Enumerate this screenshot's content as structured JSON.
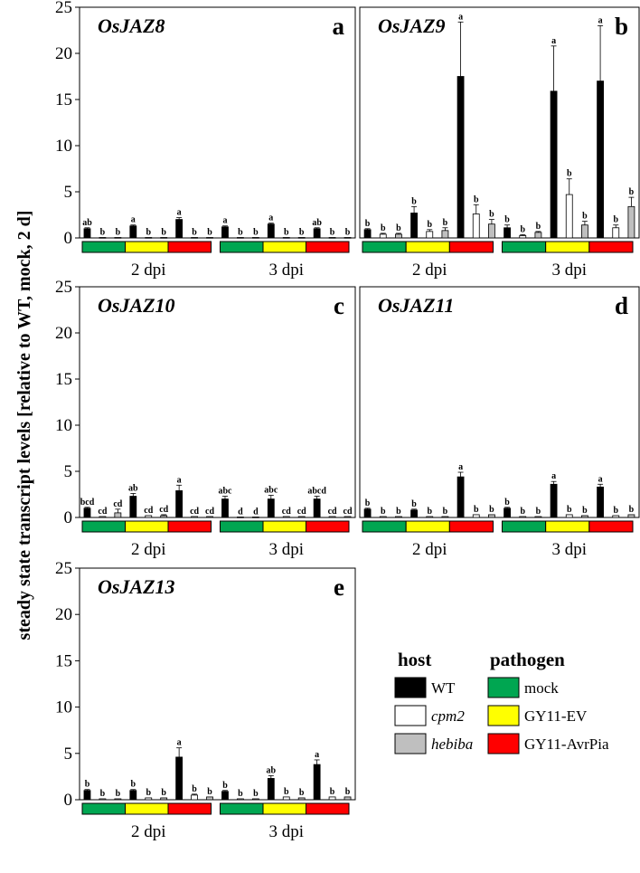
{
  "y_axis_label": "steady state transcript levels [relative to WT, mock, 2 d]",
  "colors": {
    "hosts": {
      "WT": "#000000",
      "cpm2": "#ffffff",
      "hebiba": "#bfbfbf"
    },
    "pathogens": {
      "mock": "#00a651",
      "GY11-EV": "#ffff00",
      "GY11-AvrPia": "#ff0000"
    }
  },
  "legend": {
    "host_title": "host",
    "pathogen_title": "pathogen",
    "hosts": [
      {
        "label": "WT",
        "italic": false
      },
      {
        "label": "cpm2",
        "italic": true
      },
      {
        "label": "hebiba",
        "italic": true
      }
    ],
    "pathogens": [
      "mock",
      "GY11-EV",
      "GY11-AvrPia"
    ]
  },
  "chart_data": [
    {
      "type": "bar",
      "title": "OsJAZ8",
      "letter": "a",
      "ylim": [
        0,
        25
      ],
      "yticks": [
        "0",
        "5",
        "10",
        "15",
        "20",
        "25"
      ],
      "groups": [
        "2 dpi",
        "3 dpi"
      ],
      "pathogens": [
        "mock",
        "GY11-EV",
        "GY11-AvrPia"
      ],
      "hosts": [
        "WT",
        "cpm2",
        "hebiba"
      ],
      "values": [
        [
          [
            1.0,
            0.05,
            0.05
          ],
          [
            1.3,
            0.05,
            0.05
          ],
          [
            2.0,
            0.05,
            0.05
          ]
        ],
        [
          [
            1.2,
            0.05,
            0.05
          ],
          [
            1.5,
            0.05,
            0.05
          ],
          [
            1.0,
            0.05,
            0.05
          ]
        ]
      ],
      "errors": [
        [
          [
            0.1,
            0,
            0
          ],
          [
            0.1,
            0,
            0
          ],
          [
            0.2,
            0,
            0
          ]
        ],
        [
          [
            0.1,
            0,
            0
          ],
          [
            0.1,
            0,
            0
          ],
          [
            0.1,
            0,
            0
          ]
        ]
      ],
      "sig": [
        [
          [
            "ab",
            "b",
            "b"
          ],
          [
            "a",
            "b",
            "b"
          ],
          [
            "a",
            "b",
            "b"
          ]
        ],
        [
          [
            "a",
            "b",
            "b"
          ],
          [
            "a",
            "b",
            "b"
          ],
          [
            "ab",
            "b",
            "b"
          ]
        ]
      ]
    },
    {
      "type": "bar",
      "title": "OsJAZ9",
      "letter": "b",
      "ylim": [
        0,
        25
      ],
      "yticks": [
        "0",
        "5",
        "10",
        "15",
        "20",
        "25"
      ],
      "groups": [
        "2 dpi",
        "3 dpi"
      ],
      "pathogens": [
        "mock",
        "GY11-EV",
        "GY11-AvrPia"
      ],
      "hosts": [
        "WT",
        "cpm2",
        "hebiba"
      ],
      "values": [
        [
          [
            0.9,
            0.4,
            0.4
          ],
          [
            2.7,
            0.7,
            0.8
          ],
          [
            17.5,
            2.6,
            1.5
          ]
        ],
        [
          [
            1.1,
            0.25,
            0.6
          ],
          [
            15.9,
            4.7,
            1.4
          ],
          [
            17.0,
            1.1,
            3.4
          ]
        ]
      ],
      "errors": [
        [
          [
            0.1,
            0.1,
            0.1
          ],
          [
            0.7,
            0.2,
            0.3
          ],
          [
            5.9,
            1.0,
            0.5
          ]
        ],
        [
          [
            0.3,
            0.1,
            0.1
          ],
          [
            4.9,
            1.7,
            0.4
          ],
          [
            6.0,
            0.3,
            1.0
          ]
        ]
      ],
      "sig": [
        [
          [
            "b",
            "b",
            "b"
          ],
          [
            "b",
            "b",
            "b"
          ],
          [
            "a",
            "b",
            "b"
          ]
        ],
        [
          [
            "b",
            "b",
            "b"
          ],
          [
            "a",
            "b",
            "b"
          ],
          [
            "a",
            "b",
            "b"
          ]
        ]
      ]
    },
    {
      "type": "bar",
      "title": "OsJAZ10",
      "letter": "c",
      "ylim": [
        0,
        25
      ],
      "yticks": [
        "0",
        "5",
        "10",
        "15",
        "20",
        "25"
      ],
      "groups": [
        "2 dpi",
        "3 dpi"
      ],
      "pathogens": [
        "mock",
        "GY11-EV",
        "GY11-AvrPia"
      ],
      "hosts": [
        "WT",
        "cpm2",
        "hebiba"
      ],
      "values": [
        [
          [
            1.0,
            0.1,
            0.5
          ],
          [
            2.3,
            0.2,
            0.2
          ],
          [
            2.9,
            0.1,
            0.1
          ]
        ],
        [
          [
            2.0,
            0.05,
            0.05
          ],
          [
            2.0,
            0.1,
            0.1
          ],
          [
            2.0,
            0.1,
            0.1
          ]
        ]
      ],
      "errors": [
        [
          [
            0.1,
            0,
            0.4
          ],
          [
            0.3,
            0,
            0.1
          ],
          [
            0.6,
            0,
            0
          ]
        ],
        [
          [
            0.3,
            0,
            0
          ],
          [
            0.4,
            0,
            0
          ],
          [
            0.3,
            0,
            0
          ]
        ]
      ],
      "sig": [
        [
          [
            "bcd",
            "cd",
            "cd"
          ],
          [
            "ab",
            "cd",
            "cd"
          ],
          [
            "a",
            "cd",
            "cd"
          ]
        ],
        [
          [
            "abc",
            "d",
            "d"
          ],
          [
            "abc",
            "cd",
            "cd"
          ],
          [
            "abcd",
            "cd",
            "cd"
          ]
        ]
      ]
    },
    {
      "type": "bar",
      "title": "OsJAZ11",
      "letter": "d",
      "ylim": [
        0,
        25
      ],
      "yticks": [
        "0",
        "5",
        "10",
        "15",
        "20",
        "25"
      ],
      "groups": [
        "2 dpi",
        "3 dpi"
      ],
      "pathogens": [
        "mock",
        "GY11-EV",
        "GY11-AvrPia"
      ],
      "hosts": [
        "WT",
        "cpm2",
        "hebiba"
      ],
      "values": [
        [
          [
            0.9,
            0.1,
            0.1
          ],
          [
            0.8,
            0.1,
            0.1
          ],
          [
            4.4,
            0.3,
            0.3
          ]
        ],
        [
          [
            1.0,
            0.1,
            0.1
          ],
          [
            3.6,
            0.3,
            0.2
          ],
          [
            3.3,
            0.2,
            0.3
          ]
        ]
      ],
      "errors": [
        [
          [
            0.1,
            0,
            0
          ],
          [
            0.1,
            0,
            0
          ],
          [
            0.5,
            0,
            0
          ]
        ],
        [
          [
            0.1,
            0,
            0
          ],
          [
            0.3,
            0,
            0
          ],
          [
            0.3,
            0,
            0
          ]
        ]
      ],
      "sig": [
        [
          [
            "b",
            "b",
            "b"
          ],
          [
            "b",
            "b",
            "b"
          ],
          [
            "a",
            "b",
            "b"
          ]
        ],
        [
          [
            "b",
            "b",
            "b"
          ],
          [
            "a",
            "b",
            "b"
          ],
          [
            "a",
            "b",
            "b"
          ]
        ]
      ]
    },
    {
      "type": "bar",
      "title": "OsJAZ13",
      "letter": "e",
      "ylim": [
        0,
        25
      ],
      "yticks": [
        "0",
        "5",
        "10",
        "15",
        "20",
        "25"
      ],
      "groups": [
        "2 dpi",
        "3 dpi"
      ],
      "pathogens": [
        "mock",
        "GY11-EV",
        "GY11-AvrPia"
      ],
      "hosts": [
        "WT",
        "cpm2",
        "hebiba"
      ],
      "values": [
        [
          [
            1.0,
            0.1,
            0.1
          ],
          [
            1.0,
            0.2,
            0.2
          ],
          [
            4.6,
            0.5,
            0.3
          ]
        ],
        [
          [
            0.9,
            0.1,
            0.1
          ],
          [
            2.3,
            0.3,
            0.2
          ],
          [
            3.8,
            0.3,
            0.3
          ]
        ]
      ],
      "errors": [
        [
          [
            0.1,
            0,
            0
          ],
          [
            0.1,
            0,
            0
          ],
          [
            1.0,
            0.1,
            0
          ]
        ],
        [
          [
            0.1,
            0,
            0
          ],
          [
            0.3,
            0,
            0
          ],
          [
            0.5,
            0,
            0
          ]
        ]
      ],
      "sig": [
        [
          [
            "b",
            "b",
            "b"
          ],
          [
            "b",
            "b",
            "b"
          ],
          [
            "a",
            "b",
            "b"
          ]
        ],
        [
          [
            "b",
            "b",
            "b"
          ],
          [
            "ab",
            "b",
            "b"
          ],
          [
            "a",
            "b",
            "b"
          ]
        ]
      ]
    }
  ]
}
